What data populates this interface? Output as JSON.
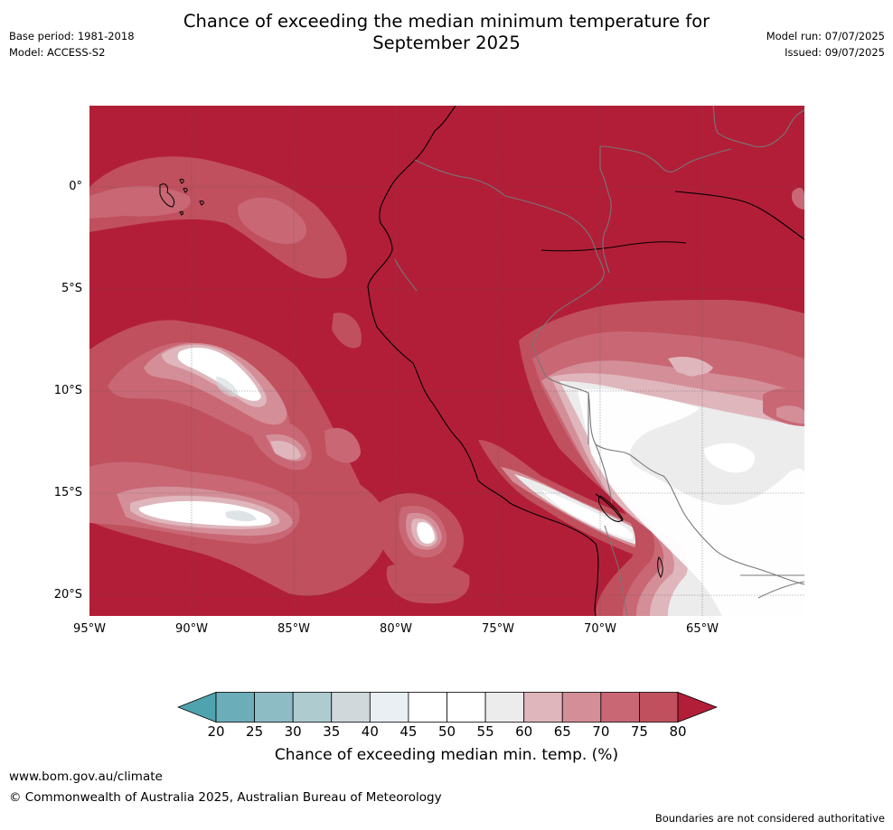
{
  "title_line1": "Chance of exceeding the median minimum temperature for",
  "title_line2": "September 2025",
  "base_period": "Base period: 1981-2018",
  "model": "Model: ACCESS-S2",
  "model_run": "Model run: 07/07/2025",
  "issued": "Issued: 09/07/2025",
  "lat_labels": [
    "0°",
    "5°S",
    "10°S",
    "15°S",
    "20°S"
  ],
  "lon_labels": [
    "95°W",
    "90°W",
    "85°W",
    "80°W",
    "75°W",
    "70°W",
    "65°W"
  ],
  "colorbar": {
    "ticks": [
      "20",
      "25",
      "30",
      "35",
      "40",
      "45",
      "50",
      "55",
      "60",
      "65",
      "70",
      "75",
      "80"
    ],
    "colors": [
      "#4fa3ae",
      "#6badb8",
      "#8dbcc5",
      "#aecbd0",
      "#d0d8db",
      "#e9eff2",
      "#ffffff",
      "#ffffff",
      "#ececec",
      "#dfb6bc",
      "#d48e98",
      "#c96775",
      "#c0505d",
      "#b21e38"
    ],
    "label": "Chance of exceeding median min. temp. (%)"
  },
  "map_colors": {
    "band80": "#b21e38",
    "band75": "#c0505d",
    "band70": "#c96775",
    "band65": "#d48e98",
    "band60": "#dfb6bc",
    "band55": "#ececec",
    "band45": "#ffffff",
    "band40": "#d0d8db"
  },
  "footer_url": "www.bom.gov.au/climate",
  "footer_copyright": "© Commonwealth of Australia 2025, Australian Bureau of Meteorology",
  "footer_note": "Boundaries are not considered authoritative"
}
